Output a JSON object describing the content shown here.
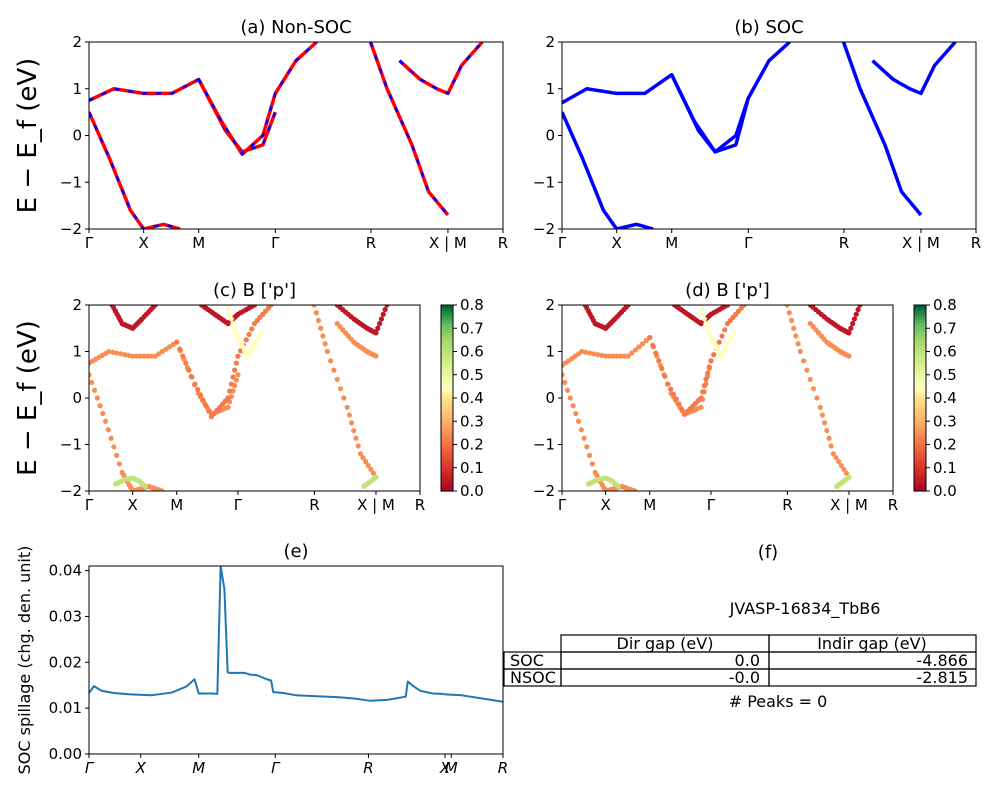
{
  "chart_data": [
    {
      "panel": "a",
      "type": "line",
      "title": "(a) Non-SOC",
      "ylabel": "E − E_f (eV)",
      "ylim": [
        -2,
        2
      ],
      "yticks": [
        "−2",
        "−1",
        "0",
        "1",
        "2"
      ],
      "xtick_labels": [
        "Γ",
        "X",
        "M",
        "Γ",
        "R",
        "X | M",
        "R"
      ],
      "xtick_positions": [
        0,
        0.132,
        0.265,
        0.45,
        0.681,
        0.867,
        1.0
      ],
      "style": "red solid lines overlaid with blue dashes",
      "colors": {
        "primary": "#ff0000",
        "overlay": "#0000ff"
      },
      "bands": [
        {
          "name": "band1",
          "x": [
            0,
            0.05,
            0.1,
            0.132,
            0.18,
            0.22
          ],
          "y": [
            0.5,
            -0.5,
            -1.6,
            -2.0,
            -1.9,
            -2.0
          ]
        },
        {
          "name": "band2",
          "x": [
            0,
            0.06,
            0.132,
            0.2,
            0.265,
            0.33,
            0.37,
            0.42,
            0.45
          ],
          "y": [
            0.75,
            1.0,
            0.9,
            0.9,
            1.2,
            0.1,
            -0.35,
            -0.2,
            0.5
          ]
        },
        {
          "name": "band3",
          "x": [
            0.265,
            0.32,
            0.37,
            0.42,
            0.45,
            0.5,
            0.55
          ],
          "y": [
            1.2,
            0.3,
            -0.4,
            0.0,
            0.9,
            1.6,
            2.0
          ]
        },
        {
          "name": "band4",
          "x": [
            0.68,
            0.72,
            0.78,
            0.82,
            0.867
          ],
          "y": [
            2.0,
            1.0,
            -0.2,
            -1.2,
            -1.7
          ]
        },
        {
          "name": "band5",
          "x": [
            0.75,
            0.8,
            0.84,
            0.867,
            0.9,
            0.95
          ],
          "y": [
            1.6,
            1.2,
            1.0,
            0.9,
            1.5,
            2.0
          ]
        }
      ]
    },
    {
      "panel": "b",
      "type": "line",
      "title": "(b) SOC",
      "ylim": [
        -2,
        2
      ],
      "yticks": [
        "−2",
        "−1",
        "0",
        "1",
        "2"
      ],
      "xtick_labels": [
        "Γ",
        "X",
        "M",
        "Γ",
        "R",
        "X | M",
        "R"
      ],
      "xtick_positions": [
        0,
        0.132,
        0.265,
        0.45,
        0.681,
        0.867,
        1.0
      ],
      "colors": {
        "primary": "#0000ff"
      },
      "bands": [
        {
          "name": "band1",
          "x": [
            0,
            0.05,
            0.1,
            0.132,
            0.18,
            0.22
          ],
          "y": [
            0.5,
            -0.5,
            -1.6,
            -2.0,
            -1.9,
            -2.0
          ]
        },
        {
          "name": "band2",
          "x": [
            0,
            0.06,
            0.132,
            0.2,
            0.265,
            0.33,
            0.37,
            0.42,
            0.45
          ],
          "y": [
            0.7,
            1.0,
            0.9,
            0.9,
            1.3,
            0.1,
            -0.35,
            -0.2,
            0.8
          ]
        },
        {
          "name": "band3",
          "x": [
            0.265,
            0.32,
            0.37,
            0.42,
            0.45,
            0.5,
            0.55
          ],
          "y": [
            1.3,
            0.3,
            -0.35,
            0.0,
            0.8,
            1.6,
            2.0
          ]
        },
        {
          "name": "band4",
          "x": [
            0.68,
            0.72,
            0.78,
            0.82,
            0.867
          ],
          "y": [
            2.0,
            1.0,
            -0.2,
            -1.2,
            -1.7
          ]
        },
        {
          "name": "band5",
          "x": [
            0.75,
            0.8,
            0.84,
            0.867,
            0.9,
            0.95
          ],
          "y": [
            1.6,
            1.2,
            1.0,
            0.9,
            1.5,
            2.0
          ]
        }
      ]
    },
    {
      "panel": "c",
      "type": "scatter",
      "title": "(c)  B ['p']",
      "ylabel": "E − E_f (eV)",
      "ylim": [
        -2,
        2
      ],
      "yticks": [
        "−2",
        "−1",
        "0",
        "1",
        "2"
      ],
      "xtick_labels": [
        "Γ",
        "X",
        "M",
        "Γ",
        "R",
        "X | M",
        "R"
      ],
      "xtick_positions": [
        0,
        0.132,
        0.265,
        0.45,
        0.681,
        0.867,
        1.0
      ],
      "colorbar": {
        "range": [
          0.0,
          0.8
        ],
        "ticks": [
          "0.0",
          "0.1",
          "0.2",
          "0.3",
          "0.4",
          "0.5",
          "0.6",
          "0.7",
          "0.8"
        ],
        "colormap": "RdYlGn"
      },
      "bands": [
        {
          "name": "b1",
          "x": [
            0,
            0.05,
            0.1,
            0.132,
            0.18,
            0.22
          ],
          "y": [
            0.5,
            -0.5,
            -1.6,
            -2.0,
            -1.9,
            -2.0
          ],
          "c": 0.25
        },
        {
          "name": "b2",
          "x": [
            0.08,
            0.11,
            0.132,
            0.15,
            0.17
          ],
          "y": [
            -1.85,
            -1.75,
            -1.72,
            -1.78,
            -1.9
          ],
          "c": 0.6
        },
        {
          "name": "b3",
          "x": [
            0,
            0.06,
            0.132,
            0.2,
            0.265,
            0.33,
            0.37,
            0.42,
            0.45
          ],
          "y": [
            0.75,
            1.0,
            0.9,
            0.9,
            1.2,
            0.1,
            -0.35,
            -0.2,
            0.5
          ],
          "c": 0.25
        },
        {
          "name": "b4",
          "x": [
            0.265,
            0.32,
            0.37,
            0.42,
            0.45,
            0.5,
            0.55
          ],
          "y": [
            1.2,
            0.3,
            -0.4,
            0.0,
            0.9,
            1.6,
            2.0
          ],
          "c": 0.22
        },
        {
          "name": "b5",
          "x": [
            0.07,
            0.1,
            0.132,
            0.16,
            0.2
          ],
          "y": [
            2.0,
            1.6,
            1.5,
            1.7,
            2.0
          ],
          "c": 0.05
        },
        {
          "name": "b6",
          "x": [
            0.34,
            0.38,
            0.42,
            0.45,
            0.5
          ],
          "y": [
            2.0,
            1.8,
            1.6,
            1.8,
            2.0
          ],
          "c": 0.05
        },
        {
          "name": "b7",
          "x": [
            0.42,
            0.45,
            0.48,
            0.52
          ],
          "y": [
            1.9,
            1.3,
            0.9,
            1.4
          ],
          "c": 0.45
        },
        {
          "name": "b8",
          "x": [
            0.68,
            0.72,
            0.78,
            0.82,
            0.867
          ],
          "y": [
            2.0,
            1.0,
            -0.2,
            -1.2,
            -1.7
          ],
          "c": 0.25
        },
        {
          "name": "b9",
          "x": [
            0.83,
            0.85,
            0.867
          ],
          "y": [
            -1.9,
            -1.8,
            -1.7
          ],
          "c": 0.6
        },
        {
          "name": "b10",
          "x": [
            0.75,
            0.8,
            0.84,
            0.867,
            0.9
          ],
          "y": [
            2.0,
            1.7,
            1.5,
            1.4,
            2.0
          ],
          "c": 0.05
        },
        {
          "name": "b11",
          "x": [
            0.75,
            0.8,
            0.84,
            0.867
          ],
          "y": [
            1.6,
            1.2,
            1.0,
            0.9
          ],
          "c": 0.25
        }
      ]
    },
    {
      "panel": "d",
      "type": "scatter",
      "title": "(d) B ['p']",
      "ylim": [
        -2,
        2
      ],
      "yticks": [
        "−2",
        "−1",
        "0",
        "1",
        "2"
      ],
      "xtick_labels": [
        "Γ",
        "X",
        "M",
        "Γ",
        "R",
        "X | M",
        "R"
      ],
      "xtick_positions": [
        0,
        0.132,
        0.265,
        0.45,
        0.681,
        0.867,
        1.0
      ],
      "colorbar": {
        "range": [
          0.0,
          0.8
        ],
        "ticks": [
          "0.0",
          "0.1",
          "0.2",
          "0.3",
          "0.4",
          "0.5",
          "0.6",
          "0.7",
          "0.8"
        ],
        "colormap": "RdYlGn"
      },
      "bands": [
        {
          "name": "b1",
          "x": [
            0,
            0.05,
            0.1,
            0.132,
            0.18,
            0.22
          ],
          "y": [
            0.5,
            -0.5,
            -1.6,
            -2.0,
            -1.9,
            -2.0
          ],
          "c": 0.25
        },
        {
          "name": "b2",
          "x": [
            0.08,
            0.11,
            0.132,
            0.15,
            0.17
          ],
          "y": [
            -1.85,
            -1.75,
            -1.72,
            -1.78,
            -1.9
          ],
          "c": 0.6
        },
        {
          "name": "b3",
          "x": [
            0,
            0.06,
            0.132,
            0.2,
            0.265,
            0.33,
            0.37,
            0.42,
            0.45
          ],
          "y": [
            0.7,
            1.0,
            0.9,
            0.9,
            1.3,
            0.1,
            -0.35,
            -0.2,
            0.8
          ],
          "c": 0.25
        },
        {
          "name": "b4",
          "x": [
            0.265,
            0.32,
            0.37,
            0.42,
            0.45,
            0.5,
            0.55
          ],
          "y": [
            1.3,
            0.3,
            -0.35,
            0.0,
            0.8,
            1.6,
            2.0
          ],
          "c": 0.22
        },
        {
          "name": "b5",
          "x": [
            0.07,
            0.1,
            0.132,
            0.16,
            0.2
          ],
          "y": [
            2.0,
            1.6,
            1.5,
            1.7,
            2.0
          ],
          "c": 0.05
        },
        {
          "name": "b6",
          "x": [
            0.34,
            0.38,
            0.42,
            0.45,
            0.5
          ],
          "y": [
            2.0,
            1.8,
            1.6,
            1.8,
            2.0
          ],
          "c": 0.05
        },
        {
          "name": "b7",
          "x": [
            0.42,
            0.45,
            0.48,
            0.52
          ],
          "y": [
            1.9,
            1.3,
            0.9,
            1.4
          ],
          "c": 0.45
        },
        {
          "name": "b8",
          "x": [
            0.68,
            0.72,
            0.78,
            0.82,
            0.867
          ],
          "y": [
            2.0,
            1.0,
            -0.2,
            -1.2,
            -1.7
          ],
          "c": 0.25
        },
        {
          "name": "b9",
          "x": [
            0.83,
            0.85,
            0.867
          ],
          "y": [
            -1.9,
            -1.8,
            -1.7
          ],
          "c": 0.6
        },
        {
          "name": "b10",
          "x": [
            0.75,
            0.8,
            0.84,
            0.867,
            0.9
          ],
          "y": [
            2.0,
            1.7,
            1.5,
            1.4,
            2.0
          ],
          "c": 0.05
        },
        {
          "name": "b11",
          "x": [
            0.75,
            0.8,
            0.84,
            0.867
          ],
          "y": [
            1.6,
            1.2,
            1.0,
            0.9
          ],
          "c": 0.25
        }
      ]
    },
    {
      "panel": "e",
      "type": "line",
      "title": "(e)",
      "ylabel": "SOC spillage (chg. den. unit)",
      "ylim": [
        0.0,
        0.041
      ],
      "yticks": [
        "0.00",
        "0.01",
        "0.02",
        "0.03",
        "0.04"
      ],
      "xtick_labels": [
        "Γ",
        "X",
        "M",
        "Γ",
        "R",
        "X",
        "M",
        "R"
      ],
      "xtick_positions": [
        0,
        0.125,
        0.265,
        0.45,
        0.675,
        0.86,
        0.875,
        1.0
      ],
      "color": "#1f77b4",
      "x": [
        0,
        0.012,
        0.03,
        0.06,
        0.1,
        0.15,
        0.2,
        0.235,
        0.255,
        0.265,
        0.3,
        0.31,
        0.318,
        0.327,
        0.335,
        0.34,
        0.375,
        0.39,
        0.405,
        0.43,
        0.44,
        0.445,
        0.47,
        0.5,
        0.55,
        0.6,
        0.64,
        0.68,
        0.72,
        0.765,
        0.77,
        0.785,
        0.8,
        0.83,
        0.855,
        0.86,
        0.9,
        0.95,
        1.0
      ],
      "y": [
        0.0133,
        0.0148,
        0.0138,
        0.0133,
        0.013,
        0.0128,
        0.0134,
        0.0147,
        0.0163,
        0.0132,
        0.0132,
        0.0131,
        0.041,
        0.036,
        0.0178,
        0.0177,
        0.0177,
        0.0173,
        0.0172,
        0.0163,
        0.016,
        0.0135,
        0.0133,
        0.0128,
        0.0126,
        0.0124,
        0.0121,
        0.0116,
        0.0118,
        0.0125,
        0.0158,
        0.0147,
        0.0138,
        0.0132,
        0.0131,
        0.013,
        0.0128,
        0.0121,
        0.0114
      ]
    },
    {
      "panel": "f",
      "type": "table",
      "title": "(f)",
      "subtitle": "JVASP-16834_TbB6",
      "columns": [
        "Dir gap (eV)",
        "Indir gap (eV)"
      ],
      "rows": [
        {
          "label": "SOC",
          "values": [
            "0.0",
            "-4.866"
          ]
        },
        {
          "label": "NSOC",
          "values": [
            "-0.0",
            "-2.815"
          ]
        }
      ],
      "footer": "# Peaks = 0"
    }
  ]
}
